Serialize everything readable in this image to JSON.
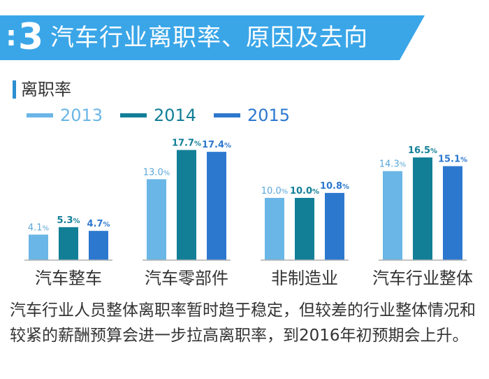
{
  "banner": {
    "dots": ":",
    "number": "3",
    "title": "汽车行业离职率、原因及去向"
  },
  "section_label": "离职率",
  "chart_data": {
    "type": "bar",
    "title": "离职率",
    "categories": [
      "汽车整车",
      "汽车零部件",
      "非制造业",
      "汽车行业整体"
    ],
    "series": [
      {
        "name": "2013",
        "values": [
          4.1,
          13.0,
          10.0,
          14.3
        ],
        "labels": [
          "4.1%",
          "13.0%",
          "10.0%",
          "14.3%"
        ],
        "color": "#6ab6e6",
        "label_color": "#5aa7d9"
      },
      {
        "name": "2014",
        "values": [
          5.3,
          17.7,
          10.0,
          16.5
        ],
        "labels": [
          "5.3%",
          "17.7%",
          "10.0%",
          "16.5%"
        ],
        "color": "#127f97",
        "label_color": "#127f97"
      },
      {
        "name": "2015",
        "values": [
          4.7,
          17.4,
          10.8,
          15.1
        ],
        "labels": [
          "4.7%",
          "17.4%",
          "10.8%",
          "15.1%"
        ],
        "color": "#2d78cf",
        "label_color": "#2d78cf"
      }
    ],
    "ylim": [
      0,
      20
    ],
    "xlabel": "",
    "ylabel": "",
    "grid": false,
    "legend": "top-left"
  },
  "colors": {
    "banner": "#3aa6e8",
    "axis": "#b0b0b0",
    "text": "#333333"
  },
  "footer": {
    "text": "汽车行业人员整体离职率暂时趋于稳定，但较差的行业整体情况和较紧的薪酬预算会进一步拉高离职率，到2016年初预期会上升。"
  }
}
